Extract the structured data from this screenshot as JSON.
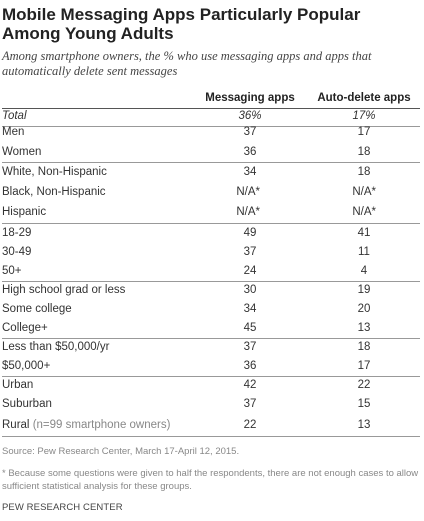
{
  "chart_data": {
    "type": "table",
    "title": "Mobile Messaging Apps Particularly Popular Among Young Adults",
    "subtitle": "Among smartphone owners, the % who use messaging apps and apps that automatically delete sent messages",
    "columns": [
      "Messaging apps",
      "Auto-delete apps"
    ],
    "rows": [
      {
        "label": "Total",
        "values": [
          "36%",
          "17%"
        ]
      },
      {
        "label": "Men",
        "values": [
          "37",
          "17"
        ]
      },
      {
        "label": "Women",
        "values": [
          "36",
          "18"
        ]
      },
      {
        "label": "White, Non-Hispanic",
        "values": [
          "34",
          "18"
        ]
      },
      {
        "label": "Black, Non-Hispanic",
        "values": [
          "N/A*",
          "N/A*"
        ]
      },
      {
        "label": "Hispanic",
        "values": [
          "N/A*",
          "N/A*"
        ]
      },
      {
        "label": "18-29",
        "values": [
          "49",
          "41"
        ]
      },
      {
        "label": "30-49",
        "values": [
          "37",
          "11"
        ]
      },
      {
        "label": "50+",
        "values": [
          "24",
          "4"
        ]
      },
      {
        "label": "High school grad or less",
        "values": [
          "30",
          "19"
        ]
      },
      {
        "label": "Some college",
        "values": [
          "34",
          "20"
        ]
      },
      {
        "label": "College+",
        "values": [
          "45",
          "13"
        ]
      },
      {
        "label": "Less than $50,000/yr",
        "values": [
          "37",
          "18"
        ]
      },
      {
        "label": "$50,000+",
        "values": [
          "36",
          "17"
        ]
      },
      {
        "label": "Urban",
        "values": [
          "42",
          "22"
        ]
      },
      {
        "label": "Suburban",
        "values": [
          "37",
          "15"
        ]
      },
      {
        "label": "Rural",
        "note": "(n=99 smartphone owners)",
        "values": [
          "22",
          "13"
        ]
      }
    ]
  },
  "source": "Source: Pew Research Center, March 17-April 12, 2015.",
  "footnote": "* Because some questions were given to half the respondents, there are not enough cases to allow sufficient statistical analysis for these groups.",
  "credit": "PEW RESEARCH CENTER"
}
